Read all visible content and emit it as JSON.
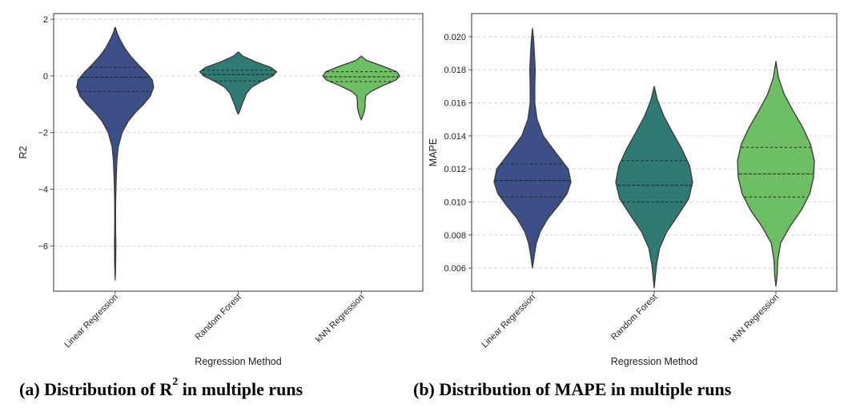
{
  "charts": [
    {
      "id": "a",
      "chart_data": {
        "type": "violin",
        "title": "",
        "xlabel": "Regression Method",
        "ylabel": "R2",
        "ylim": [
          -7.6,
          2.2
        ],
        "yticks": [
          2,
          0,
          -2,
          -4,
          -6
        ],
        "yticklabels": [
          "2",
          "0",
          "−2",
          "−4",
          "−6"
        ],
        "grid": true,
        "categories": [
          "Linear Regression",
          "Random Forest",
          "kNN Regression"
        ],
        "colors": [
          "#3c4f87",
          "#2f7b74",
          "#6ebe63"
        ],
        "violins": [
          {
            "category": "Linear Regression",
            "profile": [
              [
                1.7,
                0.01
              ],
              [
                1.55,
                0.04
              ],
              [
                1.3,
                0.12
              ],
              [
                1.0,
                0.24
              ],
              [
                0.7,
                0.4
              ],
              [
                0.4,
                0.6
              ],
              [
                0.1,
                0.82
              ],
              [
                -0.15,
                0.97
              ],
              [
                -0.4,
                1.0
              ],
              [
                -0.7,
                0.92
              ],
              [
                -1.0,
                0.74
              ],
              [
                -1.3,
                0.52
              ],
              [
                -1.6,
                0.34
              ],
              [
                -2.0,
                0.18
              ],
              [
                -2.5,
                0.08
              ],
              [
                -3.0,
                0.045
              ],
              [
                -3.5,
                0.03
              ],
              [
                -4.0,
                0.02
              ],
              [
                -4.5,
                0.012
              ],
              [
                -5.0,
                0.01
              ],
              [
                -5.5,
                0.012
              ],
              [
                -6.0,
                0.018
              ],
              [
                -6.5,
                0.014
              ],
              [
                -6.9,
                0.008
              ],
              [
                -7.2,
                0.0
              ]
            ],
            "quartiles": [
              -0.55,
              -0.05,
              0.3
            ]
          },
          {
            "category": "Random Forest",
            "profile": [
              [
                0.85,
                0.0
              ],
              [
                0.7,
                0.12
              ],
              [
                0.5,
                0.45
              ],
              [
                0.3,
                0.85
              ],
              [
                0.15,
                1.0
              ],
              [
                0.0,
                0.9
              ],
              [
                -0.2,
                0.6
              ],
              [
                -0.4,
                0.35
              ],
              [
                -0.6,
                0.22
              ],
              [
                -0.8,
                0.16
              ],
              [
                -1.0,
                0.1
              ],
              [
                -1.2,
                0.05
              ],
              [
                -1.35,
                0.0
              ]
            ],
            "quartiles": [
              -0.18,
              0.05,
              0.2
            ]
          },
          {
            "category": "kNN Regression",
            "profile": [
              [
                0.7,
                0.0
              ],
              [
                0.55,
                0.13
              ],
              [
                0.35,
                0.55
              ],
              [
                0.15,
                0.92
              ],
              [
                0.0,
                1.0
              ],
              [
                -0.15,
                0.9
              ],
              [
                -0.35,
                0.55
              ],
              [
                -0.55,
                0.25
              ],
              [
                -0.7,
                0.12
              ],
              [
                -0.9,
                0.1
              ],
              [
                -1.1,
                0.1
              ],
              [
                -1.3,
                0.07
              ],
              [
                -1.45,
                0.03
              ],
              [
                -1.55,
                0.0
              ]
            ],
            "quartiles": [
              -0.2,
              -0.03,
              0.15
            ]
          }
        ]
      }
    },
    {
      "id": "b",
      "chart_data": {
        "type": "violin",
        "title": "",
        "xlabel": "Regression Method",
        "ylabel": "MAPE",
        "ylim": [
          0.0046,
          0.0214
        ],
        "yticks": [
          0.006,
          0.008,
          0.01,
          0.012,
          0.014,
          0.016,
          0.018,
          0.02
        ],
        "yticklabels": [
          "0.006",
          "0.008",
          "0.010",
          "0.012",
          "0.014",
          "0.016",
          "0.018",
          "0.020"
        ],
        "grid": true,
        "categories": [
          "Linear Regression",
          "Random Forest",
          "kNN Regression"
        ],
        "colors": [
          "#3c4f87",
          "#2f7b74",
          "#6ebe63"
        ],
        "violins": [
          {
            "category": "Linear Regression",
            "profile": [
              [
                0.0205,
                0.0
              ],
              [
                0.0198,
                0.03
              ],
              [
                0.019,
                0.05
              ],
              [
                0.018,
                0.07
              ],
              [
                0.017,
                0.06
              ],
              [
                0.016,
                0.06
              ],
              [
                0.015,
                0.12
              ],
              [
                0.014,
                0.28
              ],
              [
                0.013,
                0.6
              ],
              [
                0.012,
                0.93
              ],
              [
                0.0112,
                1.0
              ],
              [
                0.0105,
                0.9
              ],
              [
                0.0098,
                0.68
              ],
              [
                0.009,
                0.4
              ],
              [
                0.0082,
                0.2
              ],
              [
                0.0075,
                0.1
              ],
              [
                0.0068,
                0.05
              ],
              [
                0.006,
                0.0
              ]
            ],
            "quartiles": [
              0.0103,
              0.0113,
              0.0123
            ]
          },
          {
            "category": "Random Forest",
            "profile": [
              [
                0.017,
                0.0
              ],
              [
                0.0162,
                0.08
              ],
              [
                0.0152,
                0.25
              ],
              [
                0.0142,
                0.48
              ],
              [
                0.0132,
                0.72
              ],
              [
                0.0122,
                0.92
              ],
              [
                0.0112,
                1.0
              ],
              [
                0.0102,
                0.9
              ],
              [
                0.0092,
                0.62
              ],
              [
                0.0082,
                0.33
              ],
              [
                0.0072,
                0.14
              ],
              [
                0.0062,
                0.06
              ],
              [
                0.0055,
                0.03
              ],
              [
                0.0048,
                0.0
              ]
            ],
            "quartiles": [
              0.01,
              0.011,
              0.0125
            ]
          },
          {
            "category": "kNN Regression",
            "profile": [
              [
                0.0185,
                0.0
              ],
              [
                0.0175,
                0.07
              ],
              [
                0.0165,
                0.22
              ],
              [
                0.0155,
                0.45
              ],
              [
                0.0145,
                0.7
              ],
              [
                0.0135,
                0.9
              ],
              [
                0.0125,
                1.0
              ],
              [
                0.0115,
                0.98
              ],
              [
                0.0105,
                0.88
              ],
              [
                0.0095,
                0.66
              ],
              [
                0.0085,
                0.36
              ],
              [
                0.0075,
                0.12
              ],
              [
                0.0065,
                0.05
              ],
              [
                0.0055,
                0.03
              ],
              [
                0.0049,
                0.0
              ]
            ],
            "quartiles": [
              0.0103,
              0.0117,
              0.0133
            ]
          }
        ]
      }
    }
  ],
  "captions": {
    "a_prefix": "(a) Distribution of R",
    "a_sup": "2",
    "a_suffix": " in multiple runs",
    "b": "(b) Distribution of MAPE in multiple runs"
  }
}
